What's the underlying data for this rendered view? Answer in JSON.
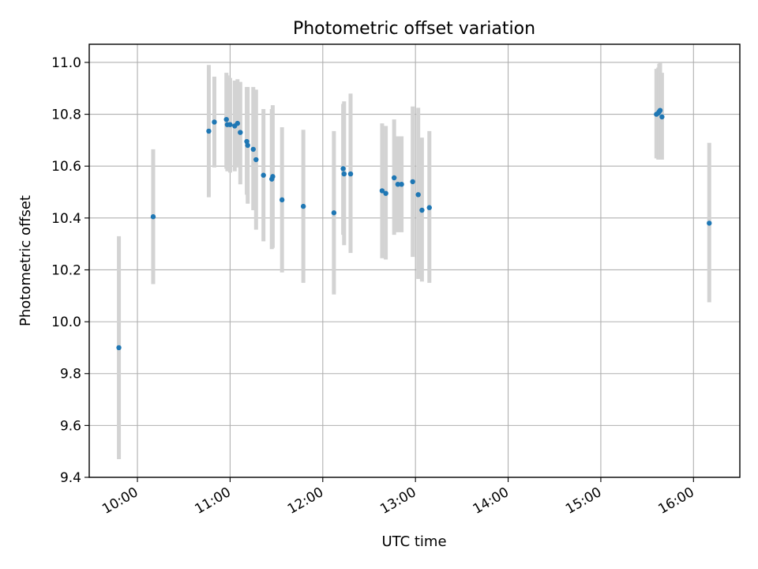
{
  "chart_data": {
    "type": "scatter",
    "title": "Photometric offset variation",
    "xlabel": "UTC time",
    "ylabel": "Photometric offset",
    "x_unit": "UTC hours",
    "xlim": [
      9.48,
      16.5
    ],
    "ylim": [
      9.4,
      11.07
    ],
    "x_ticks": [
      {
        "value": 10,
        "label": "10:00"
      },
      {
        "value": 11,
        "label": "11:00"
      },
      {
        "value": 12,
        "label": "12:00"
      },
      {
        "value": 13,
        "label": "13:00"
      },
      {
        "value": 14,
        "label": "14:00"
      },
      {
        "value": 15,
        "label": "15:00"
      },
      {
        "value": 16,
        "label": "16:00"
      }
    ],
    "y_ticks": [
      {
        "value": 9.4,
        "label": "9.4"
      },
      {
        "value": 9.6,
        "label": "9.6"
      },
      {
        "value": 9.8,
        "label": "9.8"
      },
      {
        "value": 10.0,
        "label": "10.0"
      },
      {
        "value": 10.2,
        "label": "10.2"
      },
      {
        "value": 10.4,
        "label": "10.4"
      },
      {
        "value": 10.6,
        "label": "10.6"
      },
      {
        "value": 10.8,
        "label": "10.8"
      },
      {
        "value": 11.0,
        "label": "11.0"
      }
    ],
    "grid": true,
    "point_color": "#1f77b4",
    "errorbar_color": "#d3d3d3",
    "series": [
      {
        "points": [
          {
            "x": 9.8,
            "y": 9.9,
            "low": 9.47,
            "high": 10.33
          },
          {
            "x": 10.17,
            "y": 10.405,
            "low": 10.145,
            "high": 10.665
          },
          {
            "x": 10.77,
            "y": 10.735,
            "low": 10.48,
            "high": 10.99
          },
          {
            "x": 10.83,
            "y": 10.77,
            "low": 10.595,
            "high": 10.945
          },
          {
            "x": 10.96,
            "y": 10.78,
            "low": 10.59,
            "high": 10.96
          },
          {
            "x": 10.97,
            "y": 10.76,
            "low": 10.58,
            "high": 10.95
          },
          {
            "x": 11.0,
            "y": 10.76,
            "low": 10.575,
            "high": 10.94
          },
          {
            "x": 11.05,
            "y": 10.755,
            "low": 10.58,
            "high": 10.93
          },
          {
            "x": 11.08,
            "y": 10.765,
            "low": 10.595,
            "high": 10.935
          },
          {
            "x": 11.11,
            "y": 10.73,
            "low": 10.53,
            "high": 10.925
          },
          {
            "x": 11.18,
            "y": 10.695,
            "low": 10.49,
            "high": 10.905
          },
          {
            "x": 11.19,
            "y": 10.68,
            "low": 10.455,
            "high": 10.905
          },
          {
            "x": 11.25,
            "y": 10.665,
            "low": 10.43,
            "high": 10.905
          },
          {
            "x": 11.28,
            "y": 10.625,
            "low": 10.355,
            "high": 10.895
          },
          {
            "x": 11.36,
            "y": 10.565,
            "low": 10.31,
            "high": 10.82
          },
          {
            "x": 11.45,
            "y": 10.55,
            "low": 10.28,
            "high": 10.82
          },
          {
            "x": 11.46,
            "y": 10.56,
            "low": 10.285,
            "high": 10.835
          },
          {
            "x": 11.56,
            "y": 10.47,
            "low": 10.19,
            "high": 10.75
          },
          {
            "x": 11.79,
            "y": 10.445,
            "low": 10.15,
            "high": 10.74
          },
          {
            "x": 12.12,
            "y": 10.42,
            "low": 10.105,
            "high": 10.735
          },
          {
            "x": 12.22,
            "y": 10.59,
            "low": 10.335,
            "high": 10.84
          },
          {
            "x": 12.23,
            "y": 10.57,
            "low": 10.295,
            "high": 10.85
          },
          {
            "x": 12.3,
            "y": 10.57,
            "low": 10.265,
            "high": 10.88
          },
          {
            "x": 12.64,
            "y": 10.505,
            "low": 10.245,
            "high": 10.765
          },
          {
            "x": 12.68,
            "y": 10.495,
            "low": 10.24,
            "high": 10.755
          },
          {
            "x": 12.77,
            "y": 10.555,
            "low": 10.335,
            "high": 10.78
          },
          {
            "x": 12.81,
            "y": 10.53,
            "low": 10.345,
            "high": 10.715
          },
          {
            "x": 12.85,
            "y": 10.53,
            "low": 10.345,
            "high": 10.715
          },
          {
            "x": 12.97,
            "y": 10.54,
            "low": 10.25,
            "high": 10.83
          },
          {
            "x": 13.03,
            "y": 10.49,
            "low": 10.165,
            "high": 10.825
          },
          {
            "x": 13.07,
            "y": 10.43,
            "low": 10.155,
            "high": 10.71
          },
          {
            "x": 13.15,
            "y": 10.44,
            "low": 10.15,
            "high": 10.735
          },
          {
            "x": 15.6,
            "y": 10.8,
            "low": 10.63,
            "high": 10.975
          },
          {
            "x": 15.62,
            "y": 10.805,
            "low": 10.625,
            "high": 10.98
          },
          {
            "x": 15.63,
            "y": 10.81,
            "low": 10.625,
            "high": 10.995
          },
          {
            "x": 15.64,
            "y": 10.815,
            "low": 10.63,
            "high": 11.0
          },
          {
            "x": 15.66,
            "y": 10.79,
            "low": 10.625,
            "high": 10.96
          },
          {
            "x": 16.17,
            "y": 10.38,
            "low": 10.075,
            "high": 10.69
          }
        ]
      }
    ]
  }
}
